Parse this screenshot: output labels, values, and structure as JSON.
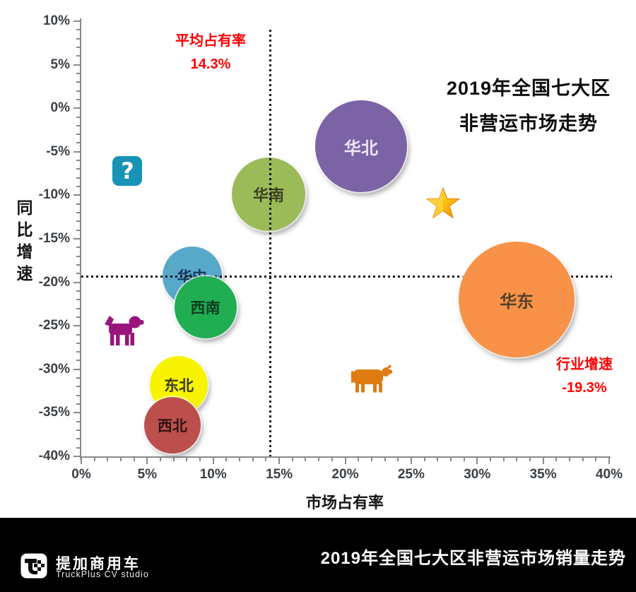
{
  "chart_data": {
    "type": "scatter",
    "title": "2019年全国七大区非营运市场走势",
    "title_lines": [
      "2019年全国七大区",
      "非营运市场走势"
    ],
    "xlabel": "市场占有率",
    "ylabel": "同比增速",
    "xlim": [
      0,
      40
    ],
    "ylim": [
      -40,
      10
    ],
    "x_ticks": [
      "0%",
      "5%",
      "10%",
      "15%",
      "20%",
      "25%",
      "30%",
      "35%",
      "40%"
    ],
    "y_ticks": [
      "10%",
      "5%",
      "0%",
      "-5%",
      "-10%",
      "-15%",
      "-20%",
      "-25%",
      "-30%",
      "-35%",
      "-40%"
    ],
    "grid": "off",
    "series": [
      {
        "name": "华南",
        "share_pct": 14.2,
        "growth_pct": -9.9,
        "r": 52,
        "color": "#9BBB59",
        "label_color": "#3a4220",
        "layer": 1
      },
      {
        "name": "华中",
        "share_pct": 8.4,
        "growth_pct": -19.3,
        "r": 42,
        "color": "#57A8C9",
        "label_color": "#17365d",
        "layer": 1
      },
      {
        "name": "华北",
        "share_pct": 21.2,
        "growth_pct": -4.4,
        "r": 65,
        "color": "#7C63A6",
        "label_color": "#ede6f7",
        "layer": 2
      },
      {
        "name": "东北",
        "share_pct": 7.4,
        "growth_pct": -31.8,
        "r": 41,
        "color": "#F8F400",
        "label_color": "#3a3a10",
        "layer": 2
      },
      {
        "name": "西北",
        "share_pct": 6.9,
        "growth_pct": -36.4,
        "r": 40,
        "color": "#BC4F4C",
        "label_color": "#2d1414",
        "layer": 2
      },
      {
        "name": "西南",
        "share_pct": 9.4,
        "growth_pct": -22.9,
        "r": 44,
        "color": "#21AE52",
        "label_color": "#0c3a1e",
        "layer": 2
      },
      {
        "name": "华东",
        "share_pct": 33.0,
        "growth_pct": -22.0,
        "r": 82,
        "color": "#F79248",
        "label_color": "#53402a",
        "layer": 2
      }
    ],
    "reference_lines": [
      {
        "orientation": "vertical",
        "value": 14.3,
        "label": "平均占有率",
        "value_text": "14.3%",
        "color": "#FF0000"
      },
      {
        "orientation": "horizontal",
        "value": -19.3,
        "label": "行业增速",
        "value_text": "-19.3%",
        "color": "#FF0000"
      }
    ],
    "markers": [
      {
        "name": "question-icon",
        "x": 3.5,
        "y": -7.2,
        "glyph": "?",
        "color": "#1793B5"
      },
      {
        "name": "star-icon",
        "x": 27.4,
        "y": -11.0,
        "color": "#FFC20E"
      },
      {
        "name": "dog-icon",
        "x": 3.2,
        "y": -25.5,
        "color": "#99157B"
      },
      {
        "name": "cow-icon",
        "x": 22.0,
        "y": -31.0,
        "color": "#DE7C12"
      }
    ]
  },
  "footer": {
    "brand_cn": "提加商用车",
    "brand_en": "TruckPlus CV studio",
    "caption": "2019年全国七大区非营运市场销量走势"
  }
}
